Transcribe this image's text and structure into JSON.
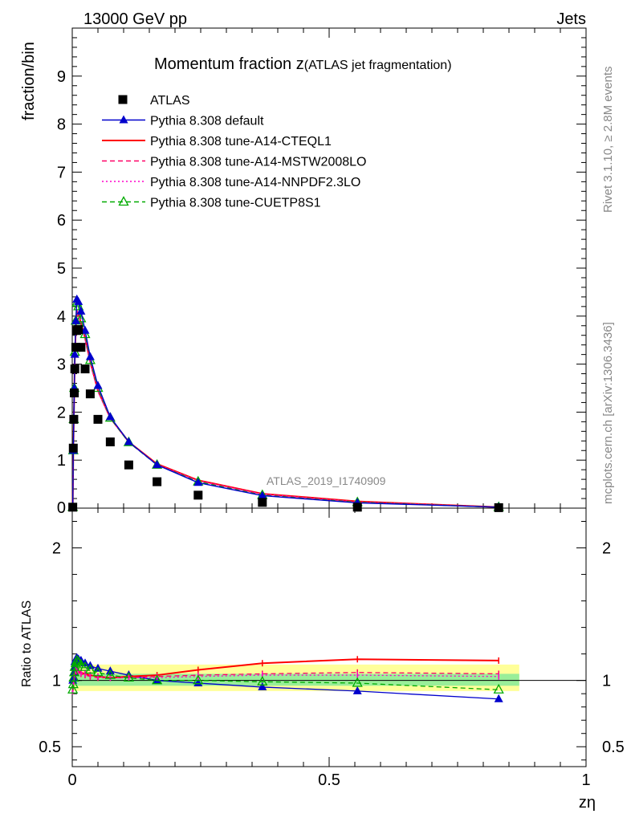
{
  "header": {
    "left": "13000 GeV pp",
    "right": "Jets",
    "title_main": "Momentum fraction z",
    "title_sub": "(ATLAS jet fragmentation)"
  },
  "side": {
    "rivet": "Rivet 3.1.10, ≥ 2.8M events",
    "mcplots": "mcplots.cern.ch [arXiv:1306.3436]"
  },
  "watermark": "ATLAS_2019_I1740909",
  "chart_data": {
    "type": "line",
    "xlabel": "zη",
    "ylabel": "fraction/bin",
    "ratio_ylabel": "Ratio to ATLAS",
    "xlim": [
      0,
      1
    ],
    "ylim": [
      0,
      10
    ],
    "ratio_ylim": [
      0.35,
      2.3
    ],
    "x_ticks": [
      "0",
      "0.5",
      "1"
    ],
    "y_ticks": [
      "1",
      "2",
      "3",
      "4",
      "5",
      "6",
      "7",
      "8",
      "9"
    ],
    "ratio_ticks": [
      "0.5",
      "1",
      "2"
    ],
    "x": [
      0.001,
      0.002,
      0.003,
      0.004,
      0.005,
      0.007,
      0.009,
      0.012,
      0.017,
      0.025,
      0.035,
      0.05,
      0.074,
      0.11,
      0.165,
      0.245,
      0.37,
      0.555,
      0.83
    ],
    "series": [
      {
        "name": "ATLAS",
        "color": "#000000",
        "style": "marker-square",
        "values": [
          0.02,
          1.25,
          1.85,
          2.4,
          2.9,
          3.35,
          3.7,
          3.72,
          3.35,
          2.9,
          2.38,
          1.85,
          1.38,
          0.9,
          0.55,
          0.27,
          0.12,
          0.02,
          0.01
        ]
      },
      {
        "name": "Pythia 8.308 default",
        "color": "#0000cc",
        "style": "solid-triangle",
        "values": [
          0.02,
          1.2,
          1.85,
          2.5,
          3.2,
          3.9,
          4.35,
          4.3,
          4.1,
          3.7,
          3.15,
          2.55,
          1.9,
          1.38,
          0.9,
          0.53,
          0.26,
          0.11,
          0.02
        ]
      },
      {
        "name": "Pythia 8.308 tune-A14-CTEQL1",
        "color": "#ff0000",
        "style": "solid",
        "values": [
          0.02,
          1.15,
          1.8,
          2.45,
          3.1,
          3.75,
          4.1,
          4.05,
          3.85,
          3.55,
          3.05,
          2.45,
          1.88,
          1.38,
          0.92,
          0.58,
          0.3,
          0.14,
          0.02
        ]
      },
      {
        "name": "Pythia 8.308 tune-A14-MSTW2008LO",
        "color": "#ff0066",
        "style": "dashed",
        "values": [
          0.02,
          1.15,
          1.8,
          2.45,
          3.1,
          3.75,
          4.1,
          4.05,
          3.85,
          3.52,
          3.02,
          2.43,
          1.87,
          1.37,
          0.91,
          0.57,
          0.29,
          0.13,
          0.02
        ]
      },
      {
        "name": "Pythia 8.308 tune-A14-NNPDF2.3LO",
        "color": "#ff00cc",
        "style": "dotted",
        "values": [
          0.02,
          1.15,
          1.8,
          2.45,
          3.12,
          3.78,
          4.12,
          4.07,
          3.86,
          3.53,
          3.03,
          2.44,
          1.87,
          1.37,
          0.91,
          0.57,
          0.29,
          0.13,
          0.02
        ]
      },
      {
        "name": "Pythia 8.308 tune-CUETP8S1",
        "color": "#00aa00",
        "style": "dashed-open-triangle",
        "values": [
          0.02,
          1.2,
          1.85,
          2.5,
          3.25,
          3.9,
          4.28,
          4.2,
          3.95,
          3.62,
          3.08,
          2.5,
          1.88,
          1.37,
          0.9,
          0.55,
          0.27,
          0.12,
          0.02
        ]
      }
    ],
    "ratio_series": [
      {
        "name": "Pythia 8.308 default",
        "values": [
          1.0,
          1.02,
          1.06,
          1.1,
          1.14,
          1.16,
          1.17,
          1.16,
          1.15,
          1.13,
          1.11,
          1.09,
          1.07,
          1.04,
          1.0,
          0.98,
          0.95,
          0.92,
          0.86
        ]
      },
      {
        "name": "Pythia 8.308 tune-A14-CTEQL1",
        "values": [
          0.92,
          0.96,
          1.0,
          1.03,
          1.06,
          1.07,
          1.08,
          1.07,
          1.06,
          1.05,
          1.04,
          1.03,
          1.02,
          1.03,
          1.04,
          1.08,
          1.13,
          1.16,
          1.15
        ]
      },
      {
        "name": "Pythia 8.308 tune-A14-MSTW2008LO",
        "values": [
          0.92,
          0.96,
          1.0,
          1.03,
          1.06,
          1.07,
          1.07,
          1.06,
          1.05,
          1.04,
          1.03,
          1.02,
          1.02,
          1.02,
          1.03,
          1.04,
          1.05,
          1.06,
          1.05
        ]
      },
      {
        "name": "Pythia 8.308 tune-A14-NNPDF2.3LO",
        "values": [
          0.92,
          0.96,
          1.0,
          1.04,
          1.07,
          1.08,
          1.08,
          1.07,
          1.06,
          1.05,
          1.04,
          1.03,
          1.02,
          1.02,
          1.02,
          1.03,
          1.04,
          1.04,
          1.03
        ]
      },
      {
        "name": "Pythia 8.308 tune-CUETP8S1",
        "values": [
          0.93,
          0.97,
          1.02,
          1.06,
          1.1,
          1.13,
          1.15,
          1.14,
          1.12,
          1.1,
          1.08,
          1.06,
          1.04,
          1.02,
          1.0,
          1.0,
          0.99,
          0.98,
          0.93
        ]
      }
    ]
  }
}
